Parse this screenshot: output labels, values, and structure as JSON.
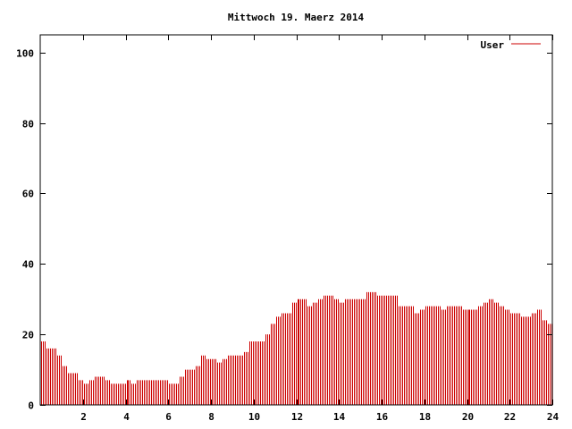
{
  "chart_data": {
    "type": "bar",
    "title": "Mittwoch 19. Maerz 2014",
    "xlabel": "",
    "ylabel": "",
    "xlim": [
      0,
      24
    ],
    "ylim": [
      0,
      105
    ],
    "xticks": [
      2,
      4,
      6,
      8,
      10,
      12,
      14,
      16,
      18,
      20,
      22,
      24
    ],
    "yticks": [
      0,
      20,
      40,
      60,
      80,
      100
    ],
    "grid": false,
    "legend_position": "top-right",
    "series": [
      {
        "name": "User",
        "color": "#cc0000",
        "x": [
          0.0,
          0.25,
          0.5,
          0.75,
          1.0,
          1.25,
          1.5,
          1.75,
          2.0,
          2.25,
          2.5,
          2.75,
          3.0,
          3.25,
          3.5,
          3.75,
          4.0,
          4.25,
          4.5,
          4.75,
          5.0,
          5.25,
          5.5,
          5.75,
          6.0,
          6.25,
          6.5,
          6.75,
          7.0,
          7.25,
          7.5,
          7.75,
          8.0,
          8.25,
          8.5,
          8.75,
          9.0,
          9.25,
          9.5,
          9.75,
          10.0,
          10.25,
          10.5,
          10.75,
          11.0,
          11.25,
          11.5,
          11.75,
          12.0,
          12.25,
          12.5,
          12.75,
          13.0,
          13.25,
          13.5,
          13.75,
          14.0,
          14.25,
          14.5,
          14.75,
          15.0,
          15.25,
          15.5,
          15.75,
          16.0,
          16.25,
          16.5,
          16.75,
          17.0,
          17.25,
          17.5,
          17.75,
          18.0,
          18.25,
          18.5,
          18.75,
          19.0,
          19.25,
          19.5,
          19.75,
          20.0,
          20.25,
          20.5,
          20.75,
          21.0,
          21.25,
          21.5,
          21.75,
          22.0,
          22.25,
          22.5,
          22.75,
          23.0,
          23.25,
          23.5,
          23.75
        ],
        "values": [
          18,
          16,
          16,
          14,
          11,
          9,
          9,
          7,
          6,
          7,
          8,
          8,
          7,
          6,
          6,
          6,
          7,
          6,
          7,
          7,
          7,
          7,
          7,
          7,
          6,
          6,
          8,
          10,
          10,
          11,
          14,
          13,
          13,
          12,
          13,
          14,
          14,
          14,
          15,
          18,
          18,
          18,
          20,
          23,
          25,
          26,
          26,
          29,
          30,
          30,
          28,
          29,
          30,
          31,
          31,
          30,
          29,
          30,
          30,
          30,
          30,
          32,
          32,
          31,
          31,
          31,
          31,
          28,
          28,
          28,
          26,
          27,
          28,
          28,
          28,
          27,
          28,
          28,
          28,
          27,
          27,
          27,
          28,
          29,
          30,
          29,
          28,
          27,
          26,
          26,
          25,
          25,
          26,
          27,
          24,
          23
        ]
      }
    ]
  }
}
